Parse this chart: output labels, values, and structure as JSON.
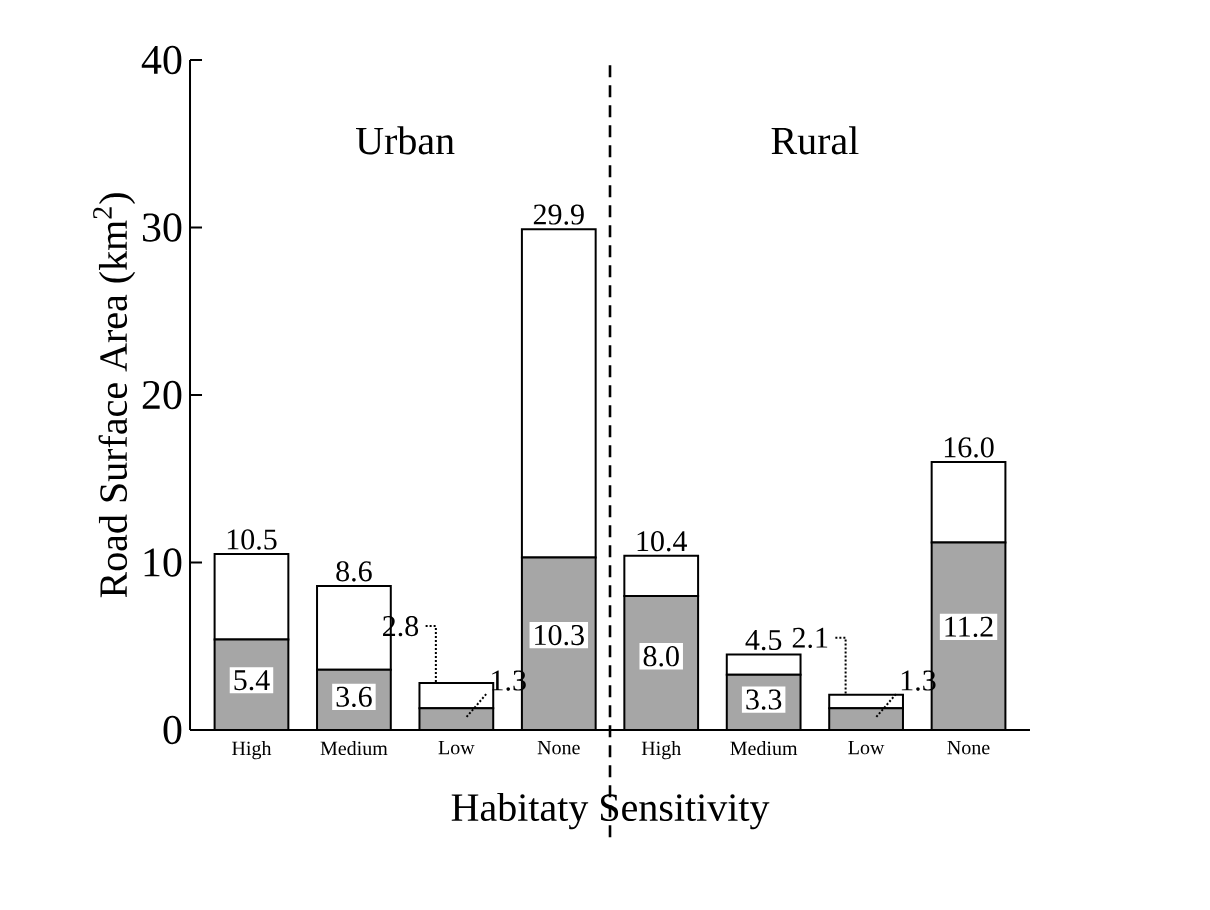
{
  "chart_data": {
    "type": "bar",
    "stacked": true,
    "xlabel": "Habitaty Sensitivity",
    "ylabel": "Road Surface Area (km$^{2}$)",
    "categories": [
      "High",
      "Medium",
      "Low",
      "None",
      "High",
      "Medium",
      "Low",
      "None"
    ],
    "series": [
      {
        "color": "#a6a6a6",
        "values": [
          5.4,
          3.6,
          1.3,
          10.3,
          8.0,
          3.3,
          1.3,
          11.2
        ],
        "value_labels": [
          "5.4",
          "3.6",
          "1.3",
          "10.3",
          "8.0",
          "3.3",
          "1.3",
          "11.2"
        ]
      },
      {
        "color": "#ffffff",
        "values": [
          5.1,
          5.0,
          1.5,
          19.6,
          2.4,
          1.2,
          0.8,
          4.8
        ]
      }
    ],
    "totals": [
      "10.5",
      "8.6",
      "2.8",
      "29.9",
      "10.4",
      "4.5",
      "2.1",
      "16.0"
    ],
    "ylim": [
      0,
      40
    ],
    "yticks": [
      0,
      10,
      20,
      30,
      40
    ],
    "grid": false,
    "legend": false,
    "annotations": [
      "Urban",
      "Rural"
    ]
  }
}
